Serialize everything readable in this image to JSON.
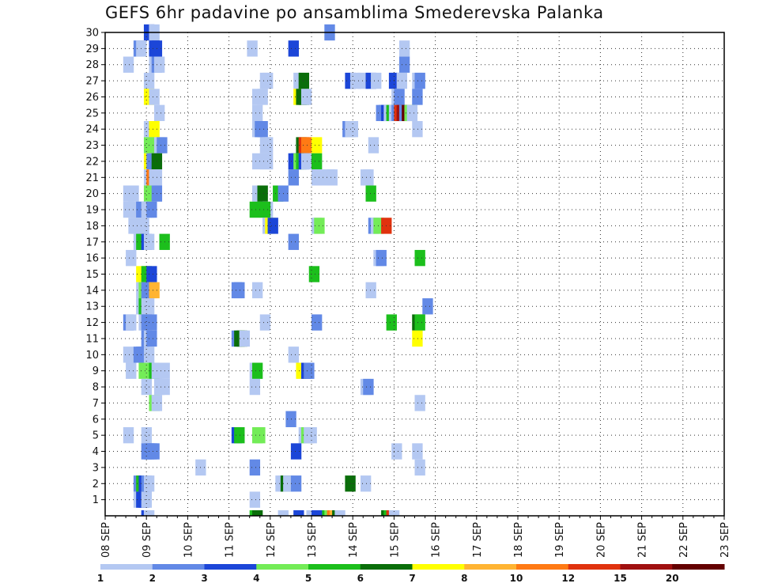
{
  "chart_data": {
    "type": "heatmap",
    "title": "GEFS 6hr padavine po ansamblima Smederevska Palanka",
    "x_tick_labels": [
      "08 SEP",
      "09 SEP",
      "10 SEP",
      "11 SEP",
      "12 SEP",
      "13 SEP",
      "14 SEP",
      "15 SEP",
      "16 SEP",
      "17 SEP",
      "18 SEP",
      "19 SEP",
      "20 SEP",
      "21 SEP",
      "22 SEP",
      "23 SEP"
    ],
    "x_range": [
      0,
      15
    ],
    "steps_per_day": 4,
    "y_tick_labels": [
      "1",
      "2",
      "3",
      "4",
      "5",
      "6",
      "7",
      "8",
      "9",
      "10",
      "11",
      "12",
      "13",
      "14",
      "15",
      "16",
      "17",
      "18",
      "19",
      "20",
      "21",
      "22",
      "23",
      "24",
      "25",
      "26",
      "27",
      "28",
      "29",
      "30"
    ],
    "y_range": [
      0,
      30
    ],
    "grid": true,
    "legend": {
      "position": "bottom",
      "labels": [
        "1",
        "2",
        "3",
        "4",
        "5",
        "6",
        "7",
        "8",
        "10",
        "12",
        "15",
        "20"
      ],
      "colors": [
        "#b4c8f2",
        "#6289e6",
        "#1c46d8",
        "#73ec57",
        "#1cbf1c",
        "#0a6e0a",
        "#ffff00",
        "#ffb432",
        "#ff7a14",
        "#e0320e",
        "#a01010",
        "#640000"
      ]
    },
    "cells": [
      [
        30,
        3.75,
        3
      ],
      [
        30,
        4.25,
        1
      ],
      [
        30,
        21.25,
        2
      ],
      [
        29,
        2.75,
        2
      ],
      [
        29,
        3,
        1
      ],
      [
        29,
        4.25,
        3
      ],
      [
        29,
        4.5,
        3
      ],
      [
        29,
        13.75,
        1
      ],
      [
        29,
        17.75,
        3
      ],
      [
        29,
        28.5,
        1
      ],
      [
        28,
        1.75,
        1
      ],
      [
        28,
        4.25,
        1
      ],
      [
        28,
        4.5,
        2
      ],
      [
        28,
        4.75,
        1
      ],
      [
        28,
        28.5,
        2
      ],
      [
        27,
        3.75,
        1
      ],
      [
        27,
        15,
        1
      ],
      [
        27,
        15.25,
        1
      ],
      [
        27,
        18.25,
        1
      ],
      [
        27,
        18.75,
        6
      ],
      [
        27,
        23.25,
        3
      ],
      [
        27,
        23.75,
        1
      ],
      [
        27,
        24.5,
        1
      ],
      [
        27,
        25.25,
        3
      ],
      [
        27,
        25.75,
        1
      ],
      [
        27,
        27.5,
        3
      ],
      [
        27,
        28.25,
        1
      ],
      [
        27,
        29.75,
        1
      ],
      [
        27,
        30,
        2
      ],
      [
        26,
        3.75,
        7
      ],
      [
        26,
        4.25,
        1
      ],
      [
        26,
        14.25,
        1
      ],
      [
        26,
        14.75,
        1
      ],
      [
        26,
        18.25,
        7
      ],
      [
        26,
        18.5,
        6
      ],
      [
        26,
        18.75,
        6
      ],
      [
        26,
        19,
        1
      ],
      [
        26,
        27.75,
        1
      ],
      [
        26,
        28,
        2
      ],
      [
        26,
        29.75,
        2
      ],
      [
        25,
        4.75,
        1
      ],
      [
        25,
        14.25,
        1
      ],
      [
        25,
        26.25,
        2
      ],
      [
        25,
        26.5,
        2
      ],
      [
        25,
        26.75,
        3
      ],
      [
        25,
        27,
        1
      ],
      [
        25,
        27.25,
        5
      ],
      [
        25,
        27.5,
        1
      ],
      [
        25,
        27.75,
        2
      ],
      [
        25,
        28,
        10
      ],
      [
        25,
        28.25,
        11
      ],
      [
        25,
        28.5,
        2
      ],
      [
        25,
        28.75,
        12
      ],
      [
        25,
        29,
        4
      ],
      [
        25,
        29.25,
        1
      ],
      [
        24,
        3.75,
        1
      ],
      [
        24,
        4,
        1
      ],
      [
        24,
        4.25,
        7
      ],
      [
        24,
        14.25,
        1
      ],
      [
        24,
        14.5,
        2
      ],
      [
        24,
        14.75,
        2
      ],
      [
        24,
        23,
        2
      ],
      [
        24,
        23.25,
        1
      ],
      [
        24,
        23.5,
        1
      ],
      [
        24,
        29.75,
        1
      ],
      [
        23,
        3.75,
        4
      ],
      [
        23,
        4.75,
        1
      ],
      [
        23,
        5,
        2
      ],
      [
        23,
        15,
        1
      ],
      [
        23,
        15.25,
        1
      ],
      [
        23,
        18.5,
        6
      ],
      [
        23,
        18.75,
        10
      ],
      [
        23,
        19,
        9
      ],
      [
        23,
        20,
        7
      ],
      [
        23,
        25.5,
        1
      ],
      [
        22,
        3.75,
        7
      ],
      [
        22,
        4,
        2
      ],
      [
        22,
        4.25,
        2
      ],
      [
        22,
        4.5,
        6
      ],
      [
        22,
        15,
        1
      ],
      [
        22,
        15.25,
        1
      ],
      [
        22,
        14.25,
        1
      ],
      [
        22,
        17.75,
        3
      ],
      [
        22,
        18,
        3
      ],
      [
        22,
        18.25,
        4
      ],
      [
        22,
        18.5,
        5
      ],
      [
        22,
        18.75,
        3
      ],
      [
        22,
        19,
        1
      ],
      [
        22,
        19.25,
        1
      ],
      [
        22,
        20,
        5
      ],
      [
        21,
        3.75,
        1
      ],
      [
        21,
        4,
        9
      ],
      [
        21,
        4.25,
        1
      ],
      [
        21,
        4.5,
        1
      ],
      [
        21,
        17.75,
        2
      ],
      [
        21,
        20,
        1
      ],
      [
        21,
        20.25,
        1
      ],
      [
        21,
        21.25,
        1
      ],
      [
        21,
        21.5,
        1
      ],
      [
        21,
        24.75,
        1
      ],
      [
        21,
        25,
        1
      ],
      [
        20,
        1.75,
        1
      ],
      [
        20,
        2.25,
        1
      ],
      [
        20,
        3.75,
        4
      ],
      [
        20,
        4.5,
        2
      ],
      [
        20,
        14.25,
        1
      ],
      [
        20,
        14.75,
        6
      ],
      [
        20,
        16.25,
        5
      ],
      [
        20,
        16.75,
        2
      ],
      [
        20,
        25.25,
        5
      ],
      [
        19,
        1.75,
        1
      ],
      [
        19,
        2.75,
        1
      ],
      [
        19,
        3,
        2
      ],
      [
        19,
        3.5,
        1
      ],
      [
        19,
        3.75,
        1
      ],
      [
        19,
        4,
        2
      ],
      [
        19,
        15.25,
        1
      ],
      [
        19,
        14,
        5
      ],
      [
        19,
        15,
        5
      ],
      [
        18,
        2.25,
        1
      ],
      [
        18,
        2.5,
        1
      ],
      [
        18,
        3,
        1
      ],
      [
        18,
        3.25,
        1
      ],
      [
        18,
        15.25,
        1
      ],
      [
        18,
        15.5,
        7
      ],
      [
        18,
        15.75,
        3
      ],
      [
        18,
        20,
        1
      ],
      [
        18,
        20.25,
        4
      ],
      [
        18,
        25.5,
        2
      ],
      [
        18,
        25.75,
        1
      ],
      [
        18,
        26,
        4
      ],
      [
        18,
        26.75,
        10
      ],
      [
        17,
        2.75,
        1
      ],
      [
        17,
        3,
        5
      ],
      [
        17,
        3.5,
        3
      ],
      [
        17,
        3.75,
        1
      ],
      [
        17,
        5.25,
        5
      ],
      [
        17,
        17.75,
        2
      ],
      [
        16,
        2,
        1
      ],
      [
        16,
        26,
        1
      ],
      [
        16,
        26.25,
        2
      ],
      [
        16,
        30,
        5
      ],
      [
        15,
        3,
        7
      ],
      [
        15,
        3.5,
        5
      ],
      [
        15,
        4,
        3
      ],
      [
        15,
        19.75,
        5
      ],
      [
        14,
        3,
        1
      ],
      [
        14,
        3.25,
        4
      ],
      [
        14,
        3.5,
        2
      ],
      [
        14,
        4,
        2
      ],
      [
        14,
        4.25,
        8
      ],
      [
        14,
        12.25,
        2
      ],
      [
        14,
        12.5,
        2
      ],
      [
        14,
        14.25,
        1
      ],
      [
        14,
        25.25,
        1
      ],
      [
        13,
        3,
        1
      ],
      [
        13,
        3.25,
        5
      ],
      [
        13,
        3.5,
        1
      ],
      [
        13,
        3.75,
        1
      ],
      [
        13,
        30.75,
        2
      ],
      [
        12,
        1.75,
        2
      ],
      [
        12,
        2,
        1
      ],
      [
        12,
        3.25,
        1
      ],
      [
        12,
        3.5,
        2
      ],
      [
        12,
        4,
        2
      ],
      [
        12,
        15,
        1
      ],
      [
        12,
        20,
        2
      ],
      [
        12,
        27.25,
        5
      ],
      [
        12,
        29.75,
        6
      ],
      [
        12,
        30,
        5
      ],
      [
        11,
        3.5,
        2
      ],
      [
        11,
        3.75,
        1
      ],
      [
        11,
        4,
        2
      ],
      [
        11,
        12.25,
        2
      ],
      [
        11,
        12.5,
        6
      ],
      [
        11,
        12.75,
        6
      ],
      [
        11,
        13,
        1
      ],
      [
        11,
        29.75,
        7
      ],
      [
        10,
        1.75,
        1
      ],
      [
        10,
        2.75,
        2
      ],
      [
        10,
        3,
        2
      ],
      [
        10,
        3.25,
        2
      ],
      [
        10,
        3.75,
        1
      ],
      [
        10,
        17.75,
        1
      ],
      [
        9,
        2,
        1
      ],
      [
        9,
        3.25,
        4
      ],
      [
        9,
        4.25,
        5
      ],
      [
        9,
        4.5,
        1
      ],
      [
        9,
        5.25,
        1
      ],
      [
        9,
        14,
        1
      ],
      [
        9,
        14.25,
        5
      ],
      [
        9,
        18.5,
        7
      ],
      [
        9,
        19,
        3
      ],
      [
        9,
        19.25,
        2
      ],
      [
        8,
        3.5,
        1
      ],
      [
        8,
        4.75,
        1
      ],
      [
        8,
        5.25,
        1
      ],
      [
        8,
        14,
        1
      ],
      [
        8,
        24.75,
        1
      ],
      [
        8,
        25,
        2
      ],
      [
        7,
        4.25,
        4
      ],
      [
        7,
        4.5,
        1
      ],
      [
        7,
        30,
        1
      ],
      [
        6,
        17.5,
        2
      ],
      [
        5,
        1.75,
        1
      ],
      [
        5,
        3.5,
        1
      ],
      [
        5,
        12.25,
        3
      ],
      [
        5,
        12.5,
        5
      ],
      [
        5,
        14.25,
        4
      ],
      [
        5,
        14.5,
        4
      ],
      [
        5,
        18.75,
        1
      ],
      [
        5,
        19,
        4
      ],
      [
        5,
        19.25,
        1
      ],
      [
        5,
        19.5,
        1
      ],
      [
        4,
        3.5,
        2
      ],
      [
        4,
        3.75,
        2
      ],
      [
        4,
        4,
        2
      ],
      [
        4,
        4.25,
        2
      ],
      [
        4,
        18,
        3
      ],
      [
        4,
        27.75,
        1
      ],
      [
        4,
        29.75,
        1
      ],
      [
        3,
        8.75,
        1
      ],
      [
        3,
        14,
        2
      ],
      [
        3,
        30,
        1
      ],
      [
        2,
        2.75,
        2
      ],
      [
        2,
        3,
        5
      ],
      [
        2,
        3.25,
        3
      ],
      [
        2,
        3.5,
        2
      ],
      [
        2,
        3.75,
        1
      ],
      [
        2,
        16.5,
        1
      ],
      [
        2,
        16.75,
        1
      ],
      [
        2,
        17,
        6
      ],
      [
        2,
        17.25,
        1
      ],
      [
        2,
        18,
        2
      ],
      [
        2,
        23.25,
        6
      ],
      [
        2,
        24.75,
        1
      ],
      [
        1,
        2.75,
        1
      ],
      [
        1,
        3,
        3
      ],
      [
        1,
        3.25,
        3
      ],
      [
        1,
        3.5,
        1
      ],
      [
        1,
        14,
        1
      ],
      [
        0,
        3.5,
        3
      ],
      [
        0,
        3.75,
        1
      ],
      [
        0,
        14,
        5
      ],
      [
        0,
        14.25,
        6
      ],
      [
        0,
        16.75,
        1
      ],
      [
        0,
        20.25,
        3
      ],
      [
        0,
        20.5,
        1
      ],
      [
        0,
        20.75,
        2
      ],
      [
        0,
        21,
        5
      ],
      [
        0,
        21.25,
        4
      ],
      [
        0,
        21.5,
        9
      ],
      [
        0,
        21.75,
        8
      ],
      [
        0,
        22,
        6
      ],
      [
        0,
        22.25,
        1
      ],
      [
        0,
        26.75,
        6
      ],
      [
        0,
        27,
        5
      ],
      [
        0,
        27.25,
        10
      ],
      [
        0,
        27.5,
        1
      ],
      [
        0,
        18.25,
        3
      ],
      [
        0,
        19.5,
        1
      ],
      [
        0,
        19.75,
        1
      ],
      [
        0,
        20,
        3
      ]
    ]
  }
}
